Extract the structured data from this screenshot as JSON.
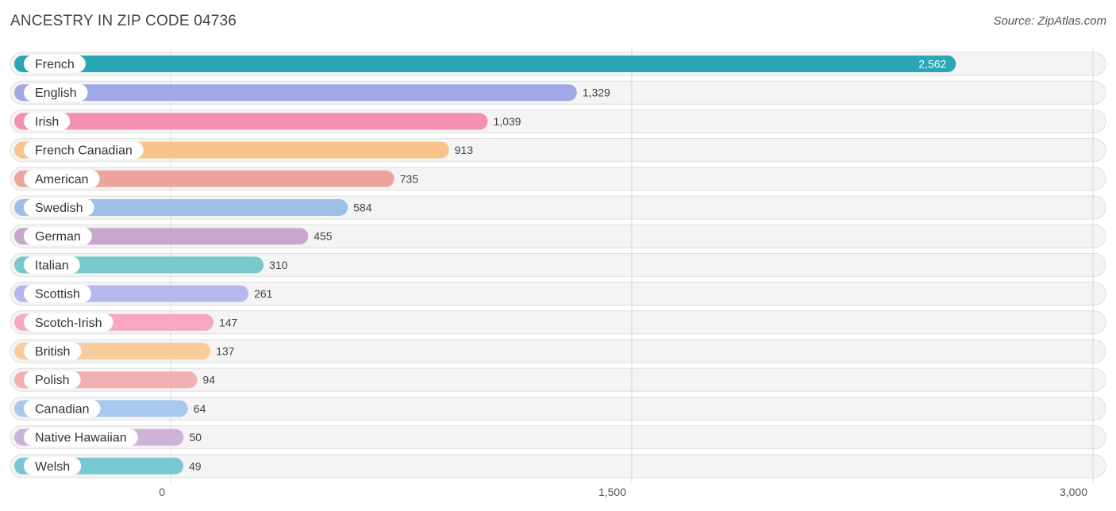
{
  "header": {
    "title": "ANCESTRY IN ZIP CODE 04736",
    "source": "Source: ZipAtlas.com"
  },
  "chart_data": {
    "type": "bar",
    "orientation": "horizontal",
    "title": "ANCESTRY IN ZIP CODE 04736",
    "categories": [
      "French",
      "English",
      "Irish",
      "French Canadian",
      "American",
      "Swedish",
      "German",
      "Italian",
      "Scottish",
      "Scotch-Irish",
      "British",
      "Polish",
      "Canadian",
      "Native Hawaiian",
      "Welsh"
    ],
    "values": [
      2562,
      1329,
      1039,
      913,
      735,
      584,
      455,
      310,
      261,
      147,
      137,
      94,
      64,
      50,
      49
    ],
    "value_labels": [
      "2,562",
      "1,329",
      "1,039",
      "913",
      "735",
      "584",
      "455",
      "310",
      "261",
      "147",
      "137",
      "94",
      "64",
      "50",
      "49"
    ],
    "colors": [
      "#2ba6b5",
      "#a0a8e6",
      "#f48fb1",
      "#f9c48a",
      "#eda49e",
      "#9dbfe8",
      "#c7a8cc",
      "#78c8cc",
      "#b4b8ec",
      "#f7a8c4",
      "#f9cc9e",
      "#f2b0b0",
      "#a8c8ee",
      "#cdb4d6",
      "#78c8d4"
    ],
    "xlim": [
      0,
      3000
    ],
    "ticks": [
      0,
      1500,
      3000
    ],
    "tick_labels": [
      "0",
      "1,500",
      "3,000"
    ],
    "grid": true
  }
}
